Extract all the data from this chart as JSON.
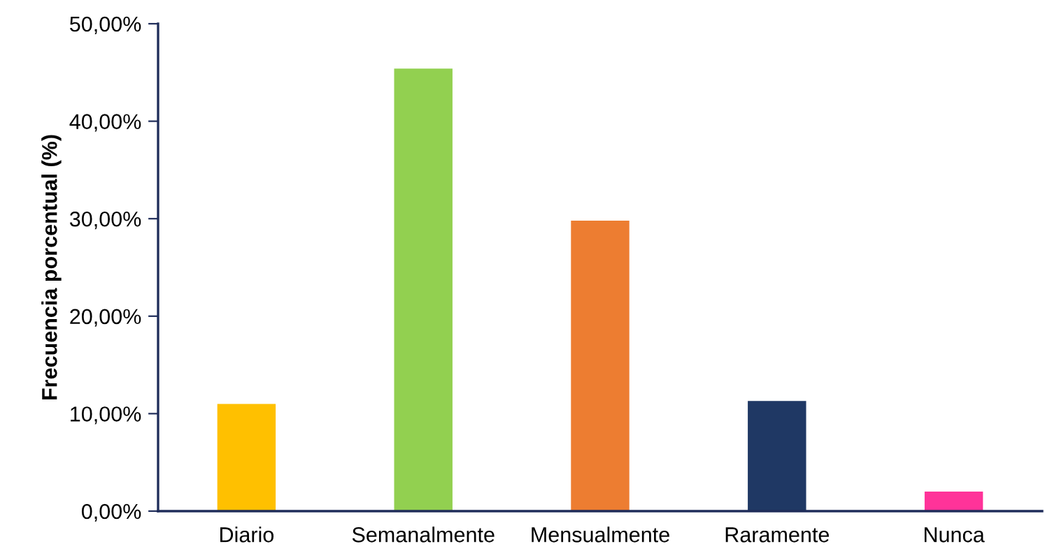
{
  "chart_data": {
    "type": "bar",
    "ylabel": "Frecuencia porcentual (%)",
    "categories": [
      "Diario",
      "Semanalmente",
      "Mensualmente",
      "Raramente",
      "Nunca"
    ],
    "values": [
      11.0,
      45.4,
      29.8,
      11.3,
      2.0
    ],
    "colors": [
      "#ffc000",
      "#92d050",
      "#ed7d31",
      "#1f3864",
      "#ff3399"
    ],
    "ylim": [
      0,
      50
    ],
    "yticks": [
      {
        "value": 0,
        "label": "0,00%"
      },
      {
        "value": 10,
        "label": "10,00%"
      },
      {
        "value": 20,
        "label": "20,00%"
      },
      {
        "value": 30,
        "label": "30,00%"
      },
      {
        "value": 40,
        "label": "40,00%"
      },
      {
        "value": 50,
        "label": "50,00%"
      }
    ],
    "grid": false,
    "legend": false
  }
}
